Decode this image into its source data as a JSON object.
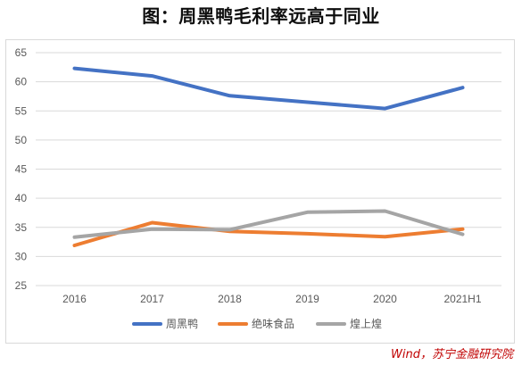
{
  "title": "图：周黑鸭毛利率远高于同业",
  "source": "Wind，苏宁金融研究院",
  "chart_data": {
    "type": "line",
    "categories": [
      "2016",
      "2017",
      "2018",
      "2019",
      "2020",
      "2021H1"
    ],
    "ylim": [
      25,
      65
    ],
    "yticks": [
      25,
      30,
      35,
      40,
      45,
      50,
      55,
      60,
      65
    ],
    "grid": true,
    "legend_position": "bottom",
    "series": [
      {
        "name": "周黑鸭",
        "color": "#4472c4",
        "values": [
          62.3,
          61.0,
          57.6,
          56.5,
          55.4,
          59.0
        ]
      },
      {
        "name": "绝味食品",
        "color": "#ed7d31",
        "values": [
          31.9,
          35.8,
          34.3,
          33.9,
          33.4,
          34.7
        ]
      },
      {
        "name": "煌上煌",
        "color": "#a5a5a5",
        "values": [
          33.3,
          34.7,
          34.6,
          37.6,
          37.8,
          33.8
        ]
      }
    ]
  }
}
